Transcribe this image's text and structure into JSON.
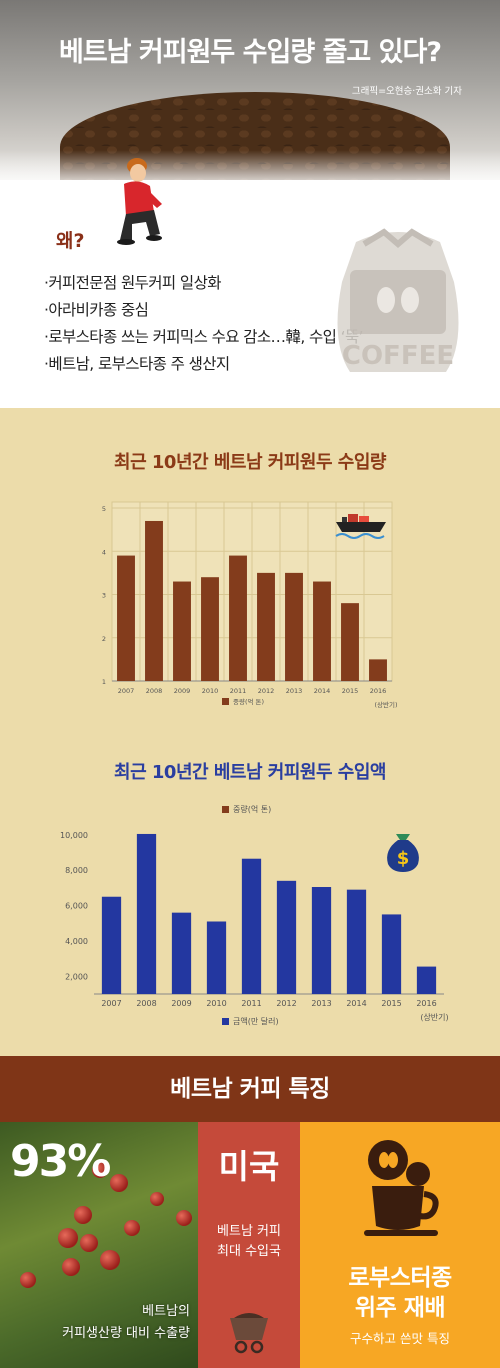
{
  "header": {
    "title": "베트남 커피원두 수입량 줄고 있다?",
    "credit": "그래픽=오현승·권소화 기자"
  },
  "intro": {
    "why_label": "왜?",
    "bullets": [
      "·커피전문점 원두커피 일상화",
      "·아라비카종 중심",
      "·로부스타종 쓰는 커피믹스 수요 감소…韓, 수입 ‘뚝’",
      "·베트남, 로부스타종 주 생산지"
    ],
    "bag_label": "COFFEE"
  },
  "colors": {
    "volume_bar": "#833c1c",
    "value_bar": "#2337a0",
    "band": "#7f3517",
    "panel_red": "#c54a3a",
    "panel_orange": "#f7a724",
    "chart_bg": "#ecdcaa"
  },
  "chart_data": [
    {
      "type": "bar",
      "title": "최근 10년간 베트남 커피원두 수입량",
      "categories": [
        "2007",
        "2008",
        "2009",
        "2010",
        "2011",
        "2012",
        "2013",
        "2014",
        "2015",
        "2016"
      ],
      "extra_label": "(상반기)",
      "series": [
        {
          "name": "중량(억 톤)",
          "values": [
            3.9,
            4.7,
            3.3,
            3.4,
            3.9,
            3.5,
            3.5,
            3.3,
            2.8,
            1.5
          ]
        }
      ],
      "yticks": [
        "1",
        "2",
        "3",
        "4",
        "5"
      ],
      "ylim": [
        1,
        5
      ],
      "legend_position": "bottom",
      "grid": true,
      "icon": "ship-icon"
    },
    {
      "type": "bar",
      "title": "최근 10년간 베트남 커피원두 수입액",
      "categories": [
        "2007",
        "2008",
        "2009",
        "2010",
        "2011",
        "2012",
        "2013",
        "2014",
        "2015",
        "2016"
      ],
      "extra_label": "(상반기)",
      "series": [
        {
          "name": "금액(만 달러)",
          "values": [
            6500,
            10050,
            5600,
            5100,
            8650,
            7400,
            7050,
            6900,
            5500,
            2550
          ]
        }
      ],
      "top_legend": "중량(억 톤)",
      "yticks": [
        "2,000",
        "4,000",
        "6,000",
        "8,000",
        "10,000"
      ],
      "ylim": [
        1000,
        10500
      ],
      "legend_position": "bottom",
      "grid": false,
      "icon": "money-bag-icon"
    }
  ],
  "features": {
    "band_title": "베트남 커피 특징",
    "export_pct": "93%",
    "export_caption_1": "베트남의",
    "export_caption_2": "커피생산량 대비 수출량",
    "top_importer": "미국",
    "importer_caption_1": "베트남 커피",
    "importer_caption_2": "최대 수입국",
    "main_crop_1": "로부스터종",
    "main_crop_2": "위주 재배",
    "crop_caption": "구수하고 쓴맛 특징"
  }
}
